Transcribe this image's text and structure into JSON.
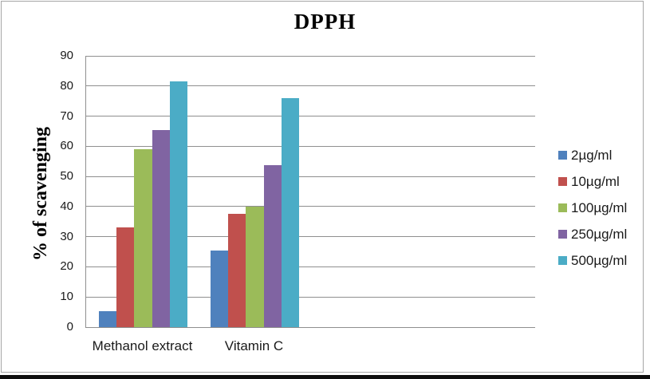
{
  "figure": {
    "title": "DPPH",
    "y_axis_label": "% of scavenging"
  },
  "chart_data": {
    "type": "bar",
    "title": "DPPH",
    "xlabel": "",
    "ylabel": "% of scavenging",
    "categories": [
      "Methanol extract",
      "Vitamin C"
    ],
    "series": [
      {
        "name": "2µg/ml",
        "color": "#4F81BD",
        "values": [
          5.4,
          25.5
        ]
      },
      {
        "name": "10µg/ml",
        "color": "#C0504D",
        "values": [
          33,
          37.5
        ]
      },
      {
        "name": "100µg/ml",
        "color": "#9BBB59",
        "values": [
          59,
          40
        ]
      },
      {
        "name": "250µg/ml",
        "color": "#8064A2",
        "values": [
          65.5,
          53.8
        ]
      },
      {
        "name": "500µg/ml",
        "color": "#4BACC6",
        "values": [
          81.5,
          76
        ]
      }
    ],
    "ylim": [
      0,
      90
    ],
    "yticks": [
      0,
      10,
      20,
      30,
      40,
      50,
      60,
      70,
      80,
      90
    ],
    "grid": true,
    "legend_position": "right",
    "colors": {
      "axis_line": "#8f8f8f",
      "gridline": "#8f8f8f",
      "frame_border": "#a6a6a6",
      "bottom_bar": "#0d0d0d",
      "text": "#1a1a1a"
    }
  }
}
